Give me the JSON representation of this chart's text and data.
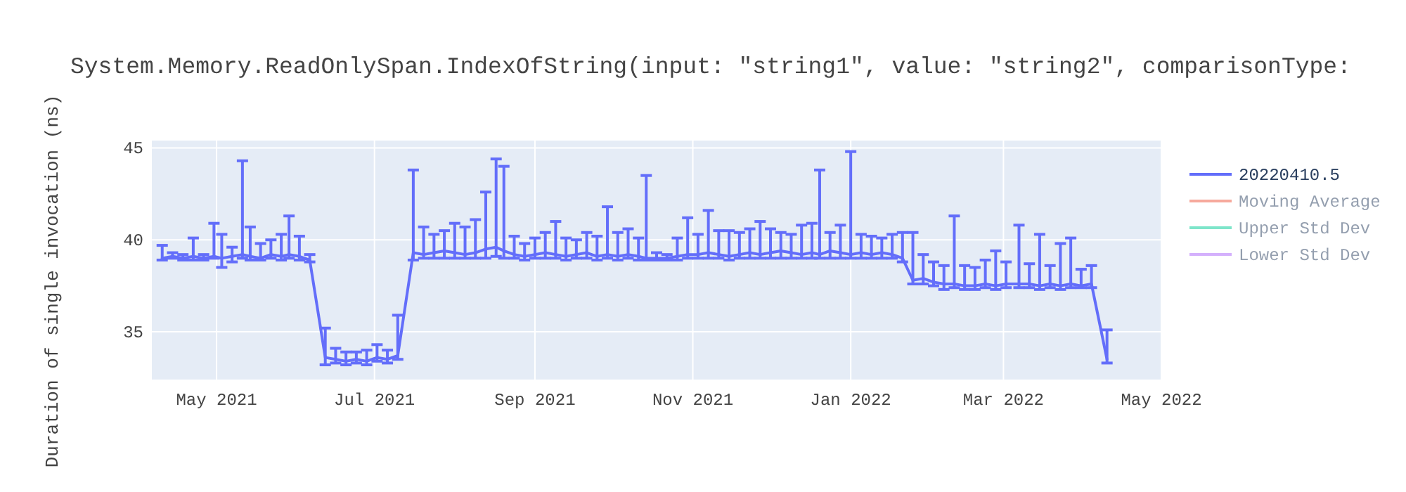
{
  "chart_data": {
    "type": "line",
    "title": "System.Memory.ReadOnlySpan.IndexOfString(input: \"string1\", value: \"string2\", comparisonType:",
    "ylabel": "Duration of single invocation (ns)",
    "xlim": [
      "2021-04-06",
      "2022-05-01"
    ],
    "xticks": [
      {
        "value": "2021-05-01",
        "label": "May 2021"
      },
      {
        "value": "2021-07-01",
        "label": "Jul 2021"
      },
      {
        "value": "2021-09-01",
        "label": "Sep 2021"
      },
      {
        "value": "2021-11-01",
        "label": "Nov 2021"
      },
      {
        "value": "2022-01-01",
        "label": "Jan 2022"
      },
      {
        "value": "2022-03-01",
        "label": "Mar 2022"
      },
      {
        "value": "2022-05-01",
        "label": "May 2022"
      }
    ],
    "ylim": [
      32.4,
      45.4
    ],
    "yticks": [
      35,
      40,
      45
    ],
    "grid": true,
    "legend": "top right",
    "line_style": "solid",
    "series": [
      {
        "name": "20220410.5",
        "color": "#636efa",
        "x": [
          "2021-04-10",
          "2021-04-14",
          "2021-04-18",
          "2021-04-22",
          "2021-04-26",
          "2021-04-30",
          "2021-05-03",
          "2021-05-07",
          "2021-05-11",
          "2021-05-14",
          "2021-05-18",
          "2021-05-22",
          "2021-05-26",
          "2021-05-29",
          "2021-06-02",
          "2021-06-06",
          "2021-06-12",
          "2021-06-16",
          "2021-06-20",
          "2021-06-24",
          "2021-06-28",
          "2021-07-02",
          "2021-07-06",
          "2021-07-10",
          "2021-07-16",
          "2021-07-20",
          "2021-07-24",
          "2021-07-28",
          "2021-08-01",
          "2021-08-05",
          "2021-08-09",
          "2021-08-13",
          "2021-08-17",
          "2021-08-20",
          "2021-08-24",
          "2021-08-28",
          "2021-09-01",
          "2021-09-05",
          "2021-09-09",
          "2021-09-13",
          "2021-09-17",
          "2021-09-21",
          "2021-09-25",
          "2021-09-29",
          "2021-10-03",
          "2021-10-07",
          "2021-10-11",
          "2021-10-14",
          "2021-10-18",
          "2021-10-22",
          "2021-10-26",
          "2021-10-30",
          "2021-11-03",
          "2021-11-07",
          "2021-11-11",
          "2021-11-15",
          "2021-11-19",
          "2021-11-23",
          "2021-11-27",
          "2021-12-01",
          "2021-12-05",
          "2021-12-09",
          "2021-12-13",
          "2021-12-17",
          "2021-12-20",
          "2021-12-24",
          "2021-12-28",
          "2022-01-01",
          "2022-01-05",
          "2022-01-09",
          "2022-01-13",
          "2022-01-17",
          "2022-01-21",
          "2022-01-25",
          "2022-01-29",
          "2022-02-02",
          "2022-02-06",
          "2022-02-10",
          "2022-02-14",
          "2022-02-18",
          "2022-02-22",
          "2022-02-26",
          "2022-03-02",
          "2022-03-07",
          "2022-03-11",
          "2022-03-15",
          "2022-03-19",
          "2022-03-23",
          "2022-03-27",
          "2022-03-31",
          "2022-04-04",
          "2022-04-10"
        ],
        "values": [
          39.0,
          39.1,
          39.0,
          39.1,
          39.0,
          39.1,
          39.0,
          39.1,
          39.2,
          39.1,
          39.0,
          39.2,
          39.1,
          39.2,
          39.1,
          38.9,
          33.6,
          33.5,
          33.4,
          33.5,
          33.4,
          33.6,
          33.5,
          33.7,
          39.3,
          39.2,
          39.3,
          39.4,
          39.3,
          39.2,
          39.3,
          39.5,
          39.6,
          39.4,
          39.2,
          39.1,
          39.2,
          39.3,
          39.2,
          39.1,
          39.2,
          39.3,
          39.1,
          39.2,
          39.1,
          39.2,
          39.1,
          39.0,
          39.0,
          39.0,
          39.1,
          39.2,
          39.2,
          39.3,
          39.2,
          39.1,
          39.2,
          39.3,
          39.2,
          39.3,
          39.4,
          39.3,
          39.2,
          39.3,
          39.2,
          39.4,
          39.3,
          39.2,
          39.3,
          39.2,
          39.3,
          39.2,
          39.0,
          37.8,
          37.9,
          37.7,
          37.6,
          37.6,
          37.5,
          37.5,
          37.6,
          37.5,
          37.6,
          37.6,
          37.6,
          37.5,
          37.6,
          37.5,
          37.6,
          37.5,
          37.6,
          33.5
        ],
        "errors": [
          [
            38.9,
            39.7
          ],
          [
            39.0,
            39.3
          ],
          [
            38.9,
            39.2
          ],
          [
            38.9,
            40.1
          ],
          [
            38.9,
            39.2
          ],
          [
            39.0,
            40.9
          ],
          [
            38.5,
            40.3
          ],
          [
            38.8,
            39.6
          ],
          [
            39.0,
            44.3
          ],
          [
            38.9,
            40.7
          ],
          [
            38.9,
            39.8
          ],
          [
            39.0,
            40.0
          ],
          [
            38.9,
            40.3
          ],
          [
            39.0,
            41.3
          ],
          [
            38.9,
            40.2
          ],
          [
            38.8,
            39.2
          ],
          [
            33.2,
            35.2
          ],
          [
            33.3,
            34.1
          ],
          [
            33.2,
            33.9
          ],
          [
            33.3,
            33.9
          ],
          [
            33.2,
            34.0
          ],
          [
            33.4,
            34.3
          ],
          [
            33.3,
            34.0
          ],
          [
            33.5,
            35.9
          ],
          [
            38.9,
            43.8
          ],
          [
            39.0,
            40.7
          ],
          [
            39.0,
            40.3
          ],
          [
            39.0,
            40.5
          ],
          [
            39.0,
            40.9
          ],
          [
            39.0,
            40.7
          ],
          [
            39.0,
            41.1
          ],
          [
            39.0,
            42.6
          ],
          [
            39.1,
            44.4
          ],
          [
            39.0,
            44.0
          ],
          [
            39.0,
            40.2
          ],
          [
            38.9,
            39.8
          ],
          [
            39.0,
            40.1
          ],
          [
            39.0,
            40.4
          ],
          [
            39.0,
            41.0
          ],
          [
            38.9,
            40.1
          ],
          [
            39.0,
            40.0
          ],
          [
            39.0,
            40.4
          ],
          [
            38.9,
            40.2
          ],
          [
            39.0,
            41.8
          ],
          [
            38.9,
            40.4
          ],
          [
            39.0,
            40.6
          ],
          [
            38.9,
            40.1
          ],
          [
            38.9,
            43.5
          ],
          [
            38.9,
            39.3
          ],
          [
            38.9,
            39.2
          ],
          [
            38.9,
            40.1
          ],
          [
            39.0,
            41.2
          ],
          [
            39.0,
            40.3
          ],
          [
            39.0,
            41.6
          ],
          [
            39.0,
            40.5
          ],
          [
            38.9,
            40.5
          ],
          [
            39.0,
            40.4
          ],
          [
            39.0,
            40.6
          ],
          [
            39.0,
            41.0
          ],
          [
            39.0,
            40.6
          ],
          [
            39.0,
            40.4
          ],
          [
            39.0,
            40.3
          ],
          [
            39.0,
            40.8
          ],
          [
            39.0,
            40.9
          ],
          [
            39.0,
            43.8
          ],
          [
            39.0,
            40.4
          ],
          [
            39.0,
            40.8
          ],
          [
            39.0,
            44.8
          ],
          [
            39.0,
            40.3
          ],
          [
            39.0,
            40.2
          ],
          [
            39.0,
            40.1
          ],
          [
            39.0,
            40.3
          ],
          [
            38.8,
            40.4
          ],
          [
            37.6,
            40.4
          ],
          [
            37.6,
            39.2
          ],
          [
            37.5,
            38.8
          ],
          [
            37.3,
            38.6
          ],
          [
            37.4,
            41.3
          ],
          [
            37.3,
            38.6
          ],
          [
            37.3,
            38.5
          ],
          [
            37.4,
            38.9
          ],
          [
            37.3,
            39.4
          ],
          [
            37.4,
            38.8
          ],
          [
            37.4,
            40.8
          ],
          [
            37.4,
            38.7
          ],
          [
            37.3,
            40.3
          ],
          [
            37.4,
            38.6
          ],
          [
            37.3,
            39.8
          ],
          [
            37.4,
            40.1
          ],
          [
            37.4,
            38.4
          ],
          [
            37.4,
            38.6
          ],
          [
            33.3,
            35.1
          ]
        ]
      },
      {
        "name": "Moving Average",
        "color": "#ef553b"
      },
      {
        "name": "Upper Std Dev",
        "color": "#00cc96"
      },
      {
        "name": "Lower Std Dev",
        "color": "#ab63fa"
      }
    ]
  }
}
